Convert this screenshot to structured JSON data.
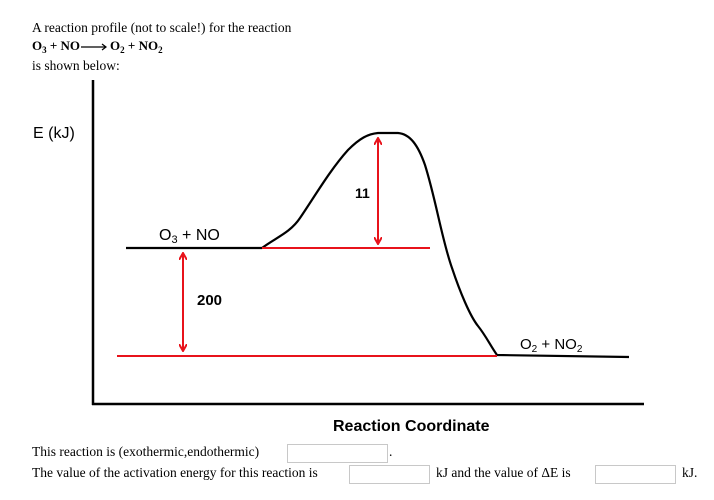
{
  "question": {
    "intro": "A reaction profile (not to scale!) for the reaction",
    "equation": {
      "reactant1": "O",
      "reactant1_sub": "3",
      "plus1": "+ NO",
      "product1": "O",
      "product1_sub": "2",
      "plus2": "+ NO",
      "product2_sub": "2"
    },
    "shown_below": "is shown below:"
  },
  "diagram": {
    "y_axis_label": "E (kJ)",
    "x_axis_label": "Reaction Coordinate",
    "reactants_label": {
      "main": "O",
      "sub": "3",
      "rest": " + NO"
    },
    "products_label": {
      "part1": "O",
      "sub1": "2",
      "part2": " + NO",
      "sub2": "2"
    },
    "activation_gap_label": "11",
    "reactant_product_gap_label": "200",
    "colors": {
      "curve": "#000000",
      "marker": "#e8131b"
    }
  },
  "questions": {
    "q1_text": "This reaction is (exothermic,endothermic)",
    "q1_suffix": ".",
    "q2_prefix": "The value of the activation energy for this reaction is",
    "q2_middle": "kJ and the value of ΔE is",
    "q2_suffix": "kJ."
  },
  "answers": {
    "reaction_type": "",
    "activation_energy": "",
    "delta_e": ""
  }
}
